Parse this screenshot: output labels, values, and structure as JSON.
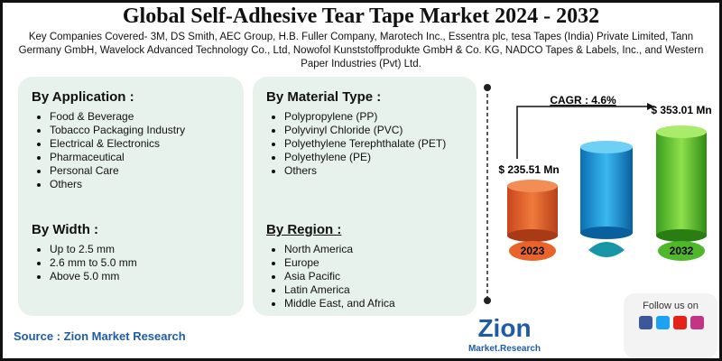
{
  "header": {
    "title": "Global Self-Adhesive Tear Tape Market 2024 - 2032",
    "subtitle": "Key Companies Covered- 3M, DS Smith, AEC Group, H.B. Fuller Company, Marotech Inc., Essentra plc, tesa Tapes (India) Private Limited, Tann Germany GmbH, Wavelock Advanced Technology Co., Ltd, Nowofol Kunststoffprodukte GmbH & Co. KG, NADCO Tapes & Labels, Inc., and Western Paper Industries (Pvt) Ltd."
  },
  "application": {
    "heading": "By Application :",
    "items": [
      "Food & Beverage",
      "Tobacco Packaging Industry",
      "Electrical & Electronics",
      "Pharmaceutical",
      "Personal Care",
      "Others"
    ]
  },
  "width": {
    "heading": "By Width :",
    "items": [
      "Up to 2.5 mm",
      "2.6 mm to 5.0 mm",
      "Above 5.0 mm"
    ]
  },
  "material": {
    "heading": "By Material Type :",
    "items": [
      "Polypropylene (PP)",
      "Polyvinyl Chloride (PVC)",
      "Polyethylene Terephthalate (PET)",
      "Polyethylene (PE)",
      "Others"
    ]
  },
  "region": {
    "heading": "By Region :",
    "items": [
      "North America",
      "Europe",
      "Asia Pacific",
      "Latin America",
      "Middle East, and Africa"
    ]
  },
  "market": {
    "cagr": "CAGR : 4.6%",
    "bars": [
      {
        "year": "2023",
        "value": 235.51,
        "label": "$ 235.51 Mn"
      },
      {
        "year": "2032",
        "value": 353.01,
        "label": "$ 353.01 Mn"
      }
    ]
  },
  "source": "Source : Zion Market Research",
  "follow": "Follow us on",
  "logo": {
    "name": "Zion",
    "tagline": "Market.Research"
  }
}
